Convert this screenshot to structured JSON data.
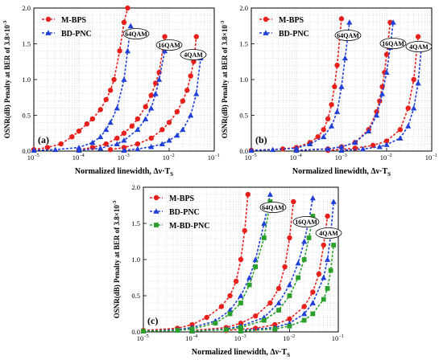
{
  "figure": {
    "ylabel_text": "OSNR(dB) Penalty at BER of 3.8×10",
    "ylabel_exp": "-3",
    "xlabel_text": "Normalized linewidth, Δν·T",
    "xlabel_sub": "S"
  },
  "colors": {
    "M-BPS": "#e8201c",
    "BD-PNC": "#1f3fd8",
    "M-BD-PNC": "#2aa02a",
    "grid": "#c8c8c8"
  },
  "chart_data": [
    {
      "panel": "(a)",
      "type": "scatter",
      "x_scale": "log",
      "xlim": [
        1e-05,
        0.1
      ],
      "ylim": [
        0,
        2.0
      ],
      "x_ticks": [
        "10-5",
        "10-4",
        "10-3",
        "10-2",
        "10-1"
      ],
      "y_ticks": [
        "0.0",
        "0.5",
        "1.0",
        "1.5",
        "2.0"
      ],
      "grid": true,
      "legend": "top-left",
      "annotations": [
        "64QAM",
        "16QAM",
        "4QAM"
      ],
      "series": [
        {
          "name": "M-BPS",
          "marker": "circle",
          "curves": [
            {
              "format": "64QAM",
              "x": [
                1e-05,
                2e-05,
                4e-05,
                7e-05,
                0.0001,
                0.00015,
                0.0002,
                0.0003,
                0.0004,
                0.0005,
                0.0006,
                0.0008,
                0.001,
                0.0012
              ],
              "y": [
                0.02,
                0.05,
                0.1,
                0.2,
                0.28,
                0.38,
                0.45,
                0.58,
                0.72,
                0.85,
                1.0,
                1.4,
                1.8,
                2.0
              ]
            },
            {
              "format": "16QAM",
              "x": [
                0.0001,
                0.0002,
                0.0004,
                0.0007,
                0.001,
                0.0015,
                0.002,
                0.003,
                0.004,
                0.005,
                0.006,
                0.008
              ],
              "y": [
                0.02,
                0.05,
                0.1,
                0.18,
                0.25,
                0.35,
                0.45,
                0.62,
                0.78,
                0.95,
                1.1,
                1.6
              ]
            },
            {
              "format": "4QAM",
              "x": [
                0.0005,
                0.001,
                0.002,
                0.004,
                0.007,
                0.01,
                0.015,
                0.02,
                0.025,
                0.03,
                0.035,
                0.04
              ],
              "y": [
                0.02,
                0.05,
                0.1,
                0.18,
                0.3,
                0.4,
                0.55,
                0.7,
                0.85,
                1.05,
                1.25,
                1.6
              ]
            }
          ]
        },
        {
          "name": "BD-PNC",
          "marker": "triangle",
          "curves": [
            {
              "format": "64QAM",
              "x": [
                1e-05,
                3e-05,
                0.0001,
                0.0002,
                0.0003,
                0.0004,
                0.0005,
                0.0007,
                0.001,
                0.0012,
                0.0014
              ],
              "y": [
                0.01,
                0.02,
                0.05,
                0.12,
                0.2,
                0.3,
                0.4,
                0.6,
                1.0,
                1.4,
                1.75
              ]
            },
            {
              "format": "16QAM",
              "x": [
                0.0001,
                0.0003,
                0.0007,
                0.001,
                0.002,
                0.003,
                0.004,
                0.005,
                0.006,
                0.008
              ],
              "y": [
                0.01,
                0.04,
                0.1,
                0.15,
                0.3,
                0.45,
                0.6,
                0.8,
                1.0,
                1.4
              ]
            },
            {
              "format": "4QAM",
              "x": [
                0.001,
                0.002,
                0.004,
                0.007,
                0.01,
                0.015,
                0.02,
                0.03,
                0.04,
                0.05
              ],
              "y": [
                0.01,
                0.03,
                0.06,
                0.1,
                0.15,
                0.22,
                0.3,
                0.5,
                0.8,
                1.3
              ]
            }
          ]
        }
      ]
    },
    {
      "panel": "(b)",
      "type": "scatter",
      "x_scale": "log",
      "xlim": [
        1e-05,
        0.1
      ],
      "ylim": [
        0,
        2.0
      ],
      "x_ticks": [
        "10-5",
        "10-4",
        "10-3",
        "10-2",
        "10-1"
      ],
      "y_ticks": [
        "0.0",
        "0.5",
        "1.0",
        "1.5",
        "2.0"
      ],
      "grid": true,
      "legend": "top-left",
      "annotations": [
        "64QAM",
        "16QAM",
        "4QAM"
      ],
      "series": [
        {
          "name": "M-BPS",
          "marker": "circle",
          "curves": [
            {
              "format": "64QAM",
              "x": [
                1e-05,
                5e-05,
                0.0001,
                0.0002,
                0.0003,
                0.0004,
                0.0005,
                0.0006,
                0.0007,
                0.0008,
                0.001
              ],
              "y": [
                0.01,
                0.03,
                0.05,
                0.12,
                0.2,
                0.3,
                0.45,
                0.65,
                0.9,
                1.2,
                1.85
              ]
            },
            {
              "format": "16QAM",
              "x": [
                0.0001,
                0.0005,
                0.001,
                0.002,
                0.004,
                0.006,
                0.007,
                0.008,
                0.009,
                0.01,
                0.012
              ],
              "y": [
                0.01,
                0.03,
                0.06,
                0.12,
                0.3,
                0.55,
                0.7,
                0.9,
                1.1,
                1.35,
                1.8
              ]
            },
            {
              "format": "4QAM",
              "x": [
                0.0005,
                0.002,
                0.005,
                0.01,
                0.02,
                0.03,
                0.04,
                0.05
              ],
              "y": [
                0.01,
                0.04,
                0.08,
                0.14,
                0.3,
                0.6,
                1.0,
                1.6
              ]
            }
          ]
        },
        {
          "name": "BD-PNC",
          "marker": "triangle",
          "curves": [
            {
              "format": "64QAM",
              "x": [
                1e-05,
                3e-05,
                0.0001,
                0.0002,
                0.0004,
                0.0006,
                0.0008,
                0.001,
                0.0012,
                0.0015
              ],
              "y": [
                0.01,
                0.02,
                0.04,
                0.1,
                0.2,
                0.35,
                0.55,
                0.9,
                1.3,
                1.8
              ]
            },
            {
              "format": "16QAM",
              "x": [
                0.0001,
                0.0005,
                0.001,
                0.002,
                0.004,
                0.006,
                0.008,
                0.01,
                0.012,
                0.014
              ],
              "y": [
                0.01,
                0.03,
                0.06,
                0.12,
                0.28,
                0.5,
                0.8,
                1.1,
                1.45,
                1.8
              ]
            },
            {
              "format": "4QAM",
              "x": [
                0.001,
                0.003,
                0.007,
                0.01,
                0.02,
                0.03,
                0.04,
                0.05,
                0.06
              ],
              "y": [
                0.01,
                0.03,
                0.06,
                0.09,
                0.18,
                0.35,
                0.6,
                0.95,
                1.5
              ]
            }
          ]
        }
      ]
    },
    {
      "panel": "(c)",
      "type": "scatter",
      "x_scale": "log",
      "xlim": [
        1e-05,
        0.1
      ],
      "ylim": [
        0,
        2.0
      ],
      "x_ticks": [
        "10-5",
        "10-4",
        "10-3",
        "10-2",
        "10-1"
      ],
      "y_ticks": [
        "0.0",
        "0.5",
        "1.0",
        "1.5",
        "2.0"
      ],
      "grid": true,
      "legend": "top-left",
      "annotations": [
        "64QAM",
        "16QAM",
        "4QAM"
      ],
      "series": [
        {
          "name": "M-BPS",
          "marker": "circle",
          "curves": [
            {
              "format": "64QAM",
              "x": [
                1e-05,
                5e-05,
                0.0001,
                0.0002,
                0.0004,
                0.0006,
                0.0008,
                0.001,
                0.0012,
                0.0014
              ],
              "y": [
                0.02,
                0.05,
                0.1,
                0.2,
                0.35,
                0.5,
                0.7,
                1.0,
                1.4,
                1.9
              ]
            },
            {
              "format": "16QAM",
              "x": [
                0.0001,
                0.0005,
                0.001,
                0.002,
                0.004,
                0.006,
                0.008,
                0.01,
                0.012
              ],
              "y": [
                0.02,
                0.06,
                0.12,
                0.22,
                0.4,
                0.6,
                0.9,
                1.3,
                1.8
              ]
            },
            {
              "format": "4QAM",
              "x": [
                0.0005,
                0.002,
                0.005,
                0.01,
                0.02,
                0.03,
                0.04,
                0.05,
                0.06
              ],
              "y": [
                0.02,
                0.05,
                0.1,
                0.18,
                0.35,
                0.55,
                0.8,
                1.2,
                1.6
              ]
            }
          ]
        },
        {
          "name": "BD-PNC",
          "marker": "triangle",
          "curves": [
            {
              "format": "64QAM",
              "x": [
                1e-05,
                5e-05,
                0.0001,
                0.0003,
                0.0006,
                0.001,
                0.0015,
                0.002,
                0.003,
                0.004
              ],
              "y": [
                0.01,
                0.03,
                0.06,
                0.15,
                0.3,
                0.5,
                0.75,
                1.0,
                1.5,
                1.9
              ]
            },
            {
              "format": "16QAM",
              "x": [
                0.0001,
                0.0005,
                0.001,
                0.003,
                0.006,
                0.01,
                0.015,
                0.02,
                0.025,
                0.03
              ],
              "y": [
                0.01,
                0.04,
                0.08,
                0.2,
                0.4,
                0.65,
                0.95,
                1.25,
                1.55,
                1.85
              ]
            },
            {
              "format": "4QAM",
              "x": [
                0.001,
                0.005,
                0.01,
                0.02,
                0.03,
                0.05,
                0.06,
                0.07,
                0.08
              ],
              "y": [
                0.02,
                0.06,
                0.12,
                0.25,
                0.4,
                0.75,
                1.0,
                1.35,
                1.8
              ]
            }
          ]
        },
        {
          "name": "M-BD-PNC",
          "marker": "square",
          "curves": [
            {
              "format": "64QAM",
              "x": [
                1e-05,
                5e-05,
                0.0001,
                0.0003,
                0.0006,
                0.001,
                0.0015,
                0.002,
                0.003,
                0.004
              ],
              "y": [
                0.01,
                0.02,
                0.04,
                0.12,
                0.25,
                0.4,
                0.65,
                0.9,
                1.3,
                1.8
              ]
            },
            {
              "format": "16QAM",
              "x": [
                0.0001,
                0.0005,
                0.001,
                0.003,
                0.006,
                0.01,
                0.015,
                0.02,
                0.025,
                0.03
              ],
              "y": [
                0.01,
                0.03,
                0.06,
                0.16,
                0.3,
                0.5,
                0.75,
                1.0,
                1.3,
                1.6
              ]
            },
            {
              "format": "4QAM",
              "x": [
                0.001,
                0.005,
                0.01,
                0.02,
                0.03,
                0.05,
                0.06,
                0.07,
                0.08
              ],
              "y": [
                0.01,
                0.04,
                0.08,
                0.16,
                0.25,
                0.45,
                0.6,
                0.85,
                1.2
              ]
            }
          ]
        }
      ]
    }
  ]
}
